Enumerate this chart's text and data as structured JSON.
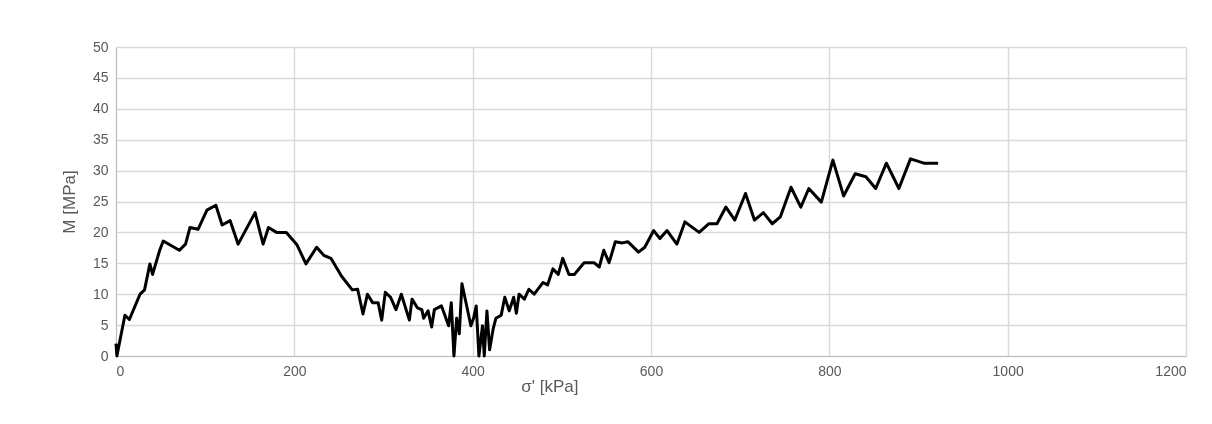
{
  "chart_data": {
    "type": "line",
    "xlabel": "σ' [kPa]",
    "ylabel": "M [MPa]",
    "xlim": [
      0,
      1200
    ],
    "xticks": [
      0,
      200,
      400,
      600,
      800,
      1000,
      1200
    ],
    "ylim": [
      0,
      50
    ],
    "yticks": [
      0,
      5,
      10,
      15,
      20,
      25,
      30,
      35,
      40,
      45,
      50
    ],
    "grid": true,
    "marker": "none",
    "line_style": "solid",
    "series": [
      {
        "color": "#000000",
        "x": [
          0,
          1,
          10,
          15,
          27,
          32,
          38,
          41,
          49,
          53,
          71,
          78,
          83,
          92,
          102,
          112,
          119,
          128,
          137,
          156,
          165,
          171,
          180,
          191,
          203,
          213,
          225,
          233,
          241,
          253,
          265,
          271,
          277,
          282,
          288,
          294,
          298,
          302,
          308,
          314,
          320,
          329,
          332,
          338,
          343,
          345,
          350,
          354,
          357,
          365,
          368,
          373,
          376,
          379,
          382,
          385,
          388,
          393,
          398,
          401,
          404,
          407,
          411,
          413,
          416,
          419,
          423,
          426,
          432,
          436,
          441,
          446,
          449,
          452,
          458,
          463,
          469,
          479,
          484,
          490,
          496,
          501,
          508,
          514,
          525,
          536,
          542,
          547,
          553,
          560,
          568,
          574,
          586,
          593,
          603,
          610,
          618,
          629,
          638,
          654,
          665,
          674,
          684,
          694,
          706,
          716,
          726,
          736,
          745,
          757,
          768,
          777,
          791,
          804,
          816,
          829,
          841,
          852,
          864,
          878,
          891,
          906,
          922
        ],
        "values": [
          2,
          0,
          6.6,
          5.9,
          10,
          10.7,
          14.9,
          13.2,
          17.1,
          18.6,
          17.1,
          18.1,
          20.8,
          20.5,
          23.6,
          24.4,
          21.2,
          21.9,
          18.1,
          23.2,
          18.1,
          20.8,
          20,
          20,
          18,
          14.9,
          17.6,
          16.3,
          15.8,
          12.9,
          10.7,
          10.8,
          6.8,
          10,
          8.6,
          8.6,
          5.8,
          10.3,
          9.5,
          7.5,
          10,
          5.8,
          9.2,
          7.8,
          7.5,
          6.1,
          7.3,
          4.7,
          7.5,
          8.1,
          6.9,
          4.9,
          8.6,
          0,
          6.1,
          3.6,
          11.7,
          8.3,
          4.9,
          6.1,
          8.1,
          0,
          4.9,
          0,
          7.3,
          1,
          4.4,
          6.1,
          6.6,
          9.5,
          7.3,
          9.5,
          6.9,
          10,
          9.2,
          10.8,
          10,
          11.9,
          11.5,
          14.1,
          13.2,
          15.8,
          13.2,
          13.2,
          15.1,
          15.1,
          14.4,
          17.1,
          15.1,
          18.5,
          18.3,
          18.5,
          16.8,
          17.6,
          20.3,
          19,
          20.3,
          18.1,
          21.7,
          20,
          21.4,
          21.4,
          24.1,
          22,
          26.3,
          22,
          23.2,
          21.4,
          22.5,
          27.3,
          24.1,
          27.1,
          24.9,
          31.7,
          25.9,
          29.5,
          29,
          27.1,
          31.2,
          27.1,
          31.9,
          31.2,
          31.2
        ]
      }
    ]
  }
}
